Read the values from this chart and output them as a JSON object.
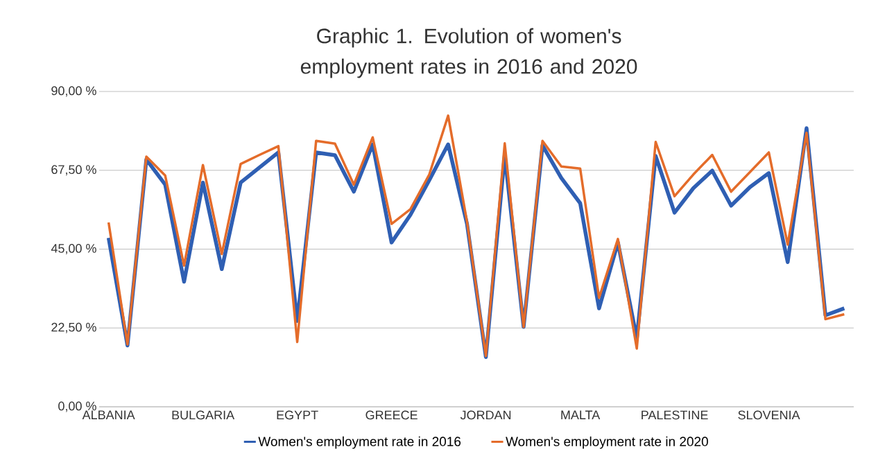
{
  "chart_data": {
    "type": "line",
    "title": "Graphic 1. Evolution of women's employment rates in 2016 and 2020",
    "categories": [
      "ALBANIA",
      null,
      null,
      null,
      null,
      "BULGARIA",
      null,
      null,
      null,
      null,
      "EGYPT",
      null,
      null,
      null,
      null,
      "GREECE",
      null,
      null,
      null,
      null,
      "JORDAN",
      null,
      null,
      null,
      null,
      "MALTA",
      null,
      null,
      null,
      null,
      "PALESTINE",
      null,
      null,
      null,
      null,
      "SLOVENIA",
      null,
      null,
      null,
      null
    ],
    "series": [
      {
        "name": "Women's employment rate in 2016",
        "color": "#2f5fb3",
        "values": [
          48.2,
          17.5,
          70.6,
          63.4,
          35.7,
          64.0,
          39.3,
          64.0,
          68.3,
          72.6,
          24.5,
          72.6,
          71.8,
          61.4,
          74.9,
          46.9,
          54.8,
          64.7,
          74.9,
          52.2,
          14.2,
          71.9,
          22.8,
          74.6,
          65.3,
          58.1,
          28.1,
          46.9,
          19.5,
          71.6,
          55.4,
          62.4,
          67.4,
          57.4,
          62.7,
          66.7,
          41.3,
          79.5,
          26.1,
          28.1
        ]
      },
      {
        "name": "Women's employment rate in 2020",
        "color": "#e46c2a",
        "values": [
          52.6,
          17.8,
          71.4,
          66.0,
          40.3,
          69.0,
          43.6,
          69.3,
          71.9,
          74.4,
          18.5,
          75.9,
          75.1,
          63.4,
          76.9,
          52.2,
          56.4,
          66.3,
          83.1,
          52.8,
          14.5,
          75.2,
          22.8,
          75.9,
          68.6,
          68.0,
          31.1,
          47.9,
          16.6,
          75.6,
          60.1,
          66.3,
          71.9,
          61.4,
          67.0,
          72.6,
          46.3,
          78.2,
          25.0,
          26.4
        ]
      }
    ],
    "ylim": [
      0,
      90
    ],
    "yticks": [
      {
        "value": 0,
        "label": "0,00 %"
      },
      {
        "value": 22.5,
        "label": "22,50 %"
      },
      {
        "value": 45,
        "label": "45,00 %"
      },
      {
        "value": 67.5,
        "label": "67,50 %"
      },
      {
        "value": 90,
        "label": "90,00 %"
      }
    ],
    "grid": "y",
    "legend": "bottom",
    "marker": "none",
    "line_style": "solid"
  }
}
